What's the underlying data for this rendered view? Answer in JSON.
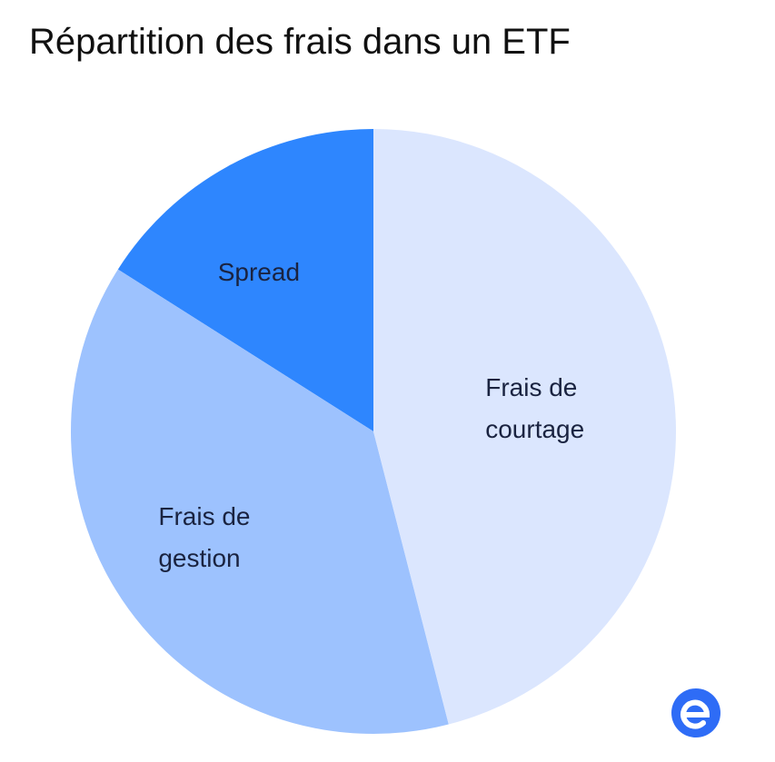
{
  "chart_data": {
    "type": "pie",
    "title": "Répartition des frais dans un ETF",
    "categories": [
      "Frais de courtage",
      "Frais de gestion",
      "Spread"
    ],
    "values": [
      46,
      38,
      16
    ],
    "colors": [
      "#dbe6fe",
      "#9dc2fe",
      "#2e86fe"
    ]
  }
}
